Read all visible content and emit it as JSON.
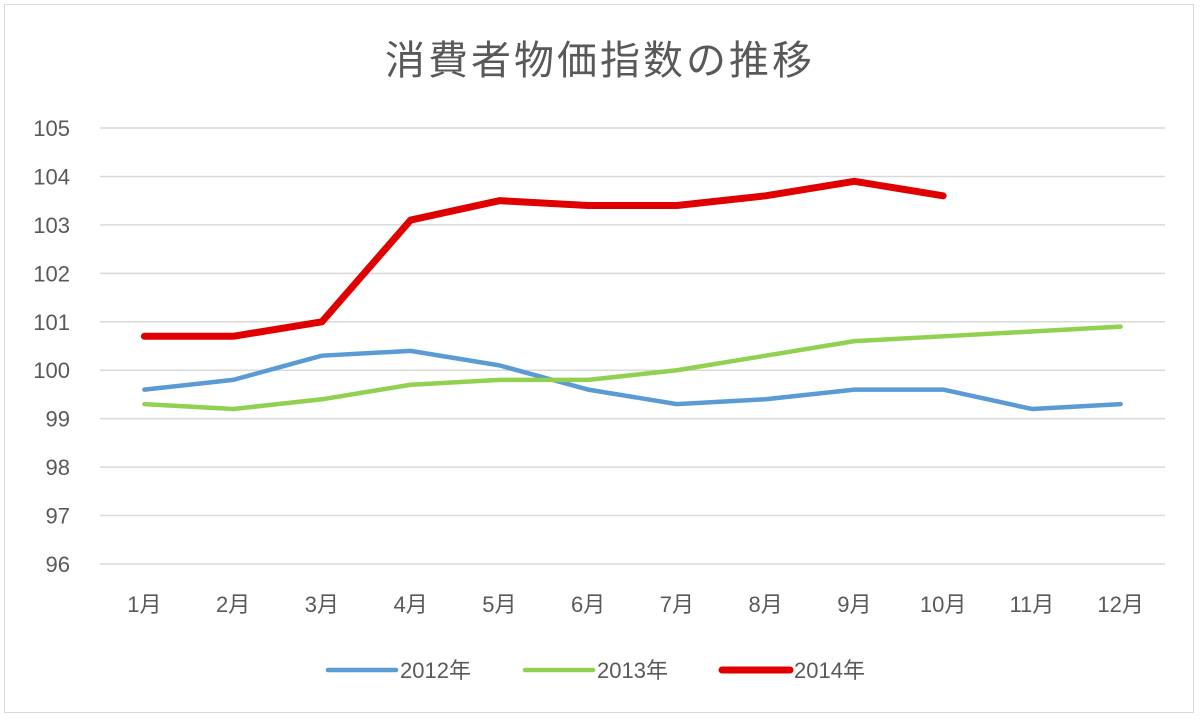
{
  "chart_data": {
    "type": "line",
    "title": "消費者物価指数の推移",
    "xlabel": "",
    "ylabel": "",
    "categories": [
      "1月",
      "2月",
      "3月",
      "4月",
      "5月",
      "6月",
      "7月",
      "8月",
      "9月",
      "10月",
      "11月",
      "12月"
    ],
    "ylim": [
      96,
      105
    ],
    "yticks": [
      "96",
      "97",
      "98",
      "99",
      "100",
      "101",
      "102",
      "103",
      "104",
      "105"
    ],
    "grid": true,
    "legend_position": "bottom",
    "series": [
      {
        "name": "2012年",
        "color": "#5b9bd5",
        "values": [
          99.6,
          99.8,
          100.3,
          100.4,
          100.1,
          99.6,
          99.3,
          99.4,
          99.6,
          99.6,
          99.2,
          99.3
        ]
      },
      {
        "name": "2013年",
        "color": "#92d050",
        "values": [
          99.3,
          99.2,
          99.4,
          99.7,
          99.8,
          99.8,
          100.0,
          100.3,
          100.6,
          100.7,
          100.8,
          100.9
        ]
      },
      {
        "name": "2014年",
        "color": "#e00000",
        "values": [
          100.7,
          100.7,
          101.0,
          103.1,
          103.5,
          103.4,
          103.4,
          103.6,
          103.9,
          103.6,
          null,
          null
        ]
      }
    ]
  }
}
